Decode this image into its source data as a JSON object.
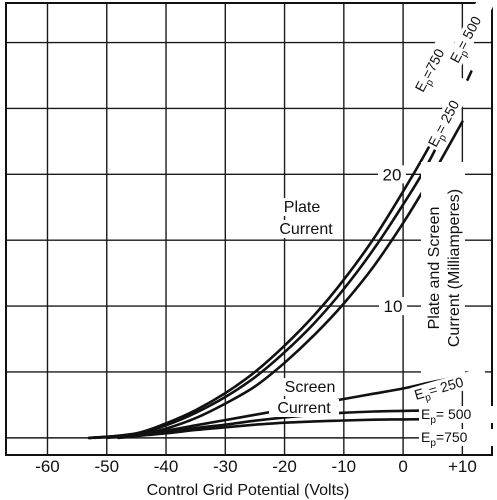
{
  "chart_data": {
    "type": "line",
    "xlabel": "Control Grid Potential (Volts)",
    "ylabel_lines": [
      "Plate and Screen",
      "Current (Milliamperes)"
    ],
    "xlim": [
      -67,
      15
    ],
    "ylim": [
      -1.3,
      33
    ],
    "x_ticks": [
      -60,
      -50,
      -40,
      -30,
      -20,
      -10,
      0,
      10
    ],
    "x_tick_labels": [
      "-60",
      "-50",
      "-40",
      "-30",
      "-20",
      "-10",
      "0",
      "+10"
    ],
    "y_ticks": [
      10,
      20
    ],
    "y_tick_labels": [
      "10",
      "20"
    ],
    "grid": true,
    "annotations": {
      "plate_line1": "Plate",
      "plate_line2": "Current",
      "screen_line1": "Screen",
      "screen_line2": "Current"
    },
    "series": [
      {
        "group": "plate",
        "label": "Ep=750",
        "x": [
          -52,
          -45,
          -40,
          -35,
          -30,
          -25,
          -20,
          -15,
          -10,
          -5,
          0,
          5,
          10
        ],
        "y": [
          0,
          0.35,
          1.1,
          2.1,
          3.4,
          5.0,
          7.0,
          9.3,
          12.0,
          15.1,
          18.7,
          22.6,
          27.0
        ]
      },
      {
        "group": "plate",
        "label": "Ep=500",
        "x": [
          -50,
          -45,
          -40,
          -35,
          -30,
          -25,
          -20,
          -15,
          -10,
          -5,
          0,
          5,
          11.5
        ],
        "y": [
          0,
          0.25,
          0.95,
          1.9,
          3.1,
          4.6,
          6.5,
          8.7,
          11.3,
          14.3,
          17.7,
          21.5,
          27.8
        ]
      },
      {
        "group": "plate",
        "label": "Ep=250",
        "x": [
          -48,
          -45,
          -40,
          -35,
          -30,
          -25,
          -20,
          -15,
          -10,
          -5,
          0,
          5,
          10
        ],
        "y": [
          0,
          0.15,
          0.7,
          1.5,
          2.6,
          3.9,
          5.7,
          7.8,
          10.2,
          13.0,
          16.3,
          20.0,
          24.0
        ]
      },
      {
        "group": "screen",
        "label": "Ep=250",
        "x": [
          -53,
          -45,
          -40,
          -35,
          -30,
          -25,
          -20,
          -15,
          -10,
          -5,
          0,
          5,
          11
        ],
        "y": [
          0,
          0.25,
          0.55,
          0.95,
          1.35,
          1.75,
          2.15,
          2.55,
          2.95,
          3.35,
          3.75,
          4.25,
          4.8
        ]
      },
      {
        "group": "screen",
        "label": "Ep=500",
        "x": [
          -53,
          -45,
          -40,
          -35,
          -30,
          -25,
          -20,
          -15,
          -10,
          -5,
          0,
          5,
          11
        ],
        "y": [
          0,
          0.2,
          0.45,
          0.75,
          1.0,
          1.3,
          1.55,
          1.75,
          1.9,
          2.0,
          2.05,
          2.08,
          2.1
        ]
      },
      {
        "group": "screen",
        "label": "Ep=750",
        "x": [
          -53,
          -45,
          -40,
          -35,
          -30,
          -25,
          -20,
          -15,
          -10,
          -5,
          0,
          5,
          11
        ],
        "y": [
          0,
          0.15,
          0.35,
          0.6,
          0.8,
          1.0,
          1.15,
          1.25,
          1.32,
          1.38,
          1.4,
          1.42,
          1.42
        ]
      }
    ],
    "curve_labels": [
      {
        "main": "E",
        "sub": "p",
        "value": "=750"
      },
      {
        "main": "E",
        "sub": "p",
        "value": "= 500"
      },
      {
        "main": "E",
        "sub": "p",
        "value": "= 250"
      },
      {
        "main": "E",
        "sub": "p",
        "value": "= 250"
      },
      {
        "main": "E",
        "sub": "p",
        "value": "= 500"
      },
      {
        "main": "E",
        "sub": "p",
        "value": "=750"
      }
    ]
  }
}
